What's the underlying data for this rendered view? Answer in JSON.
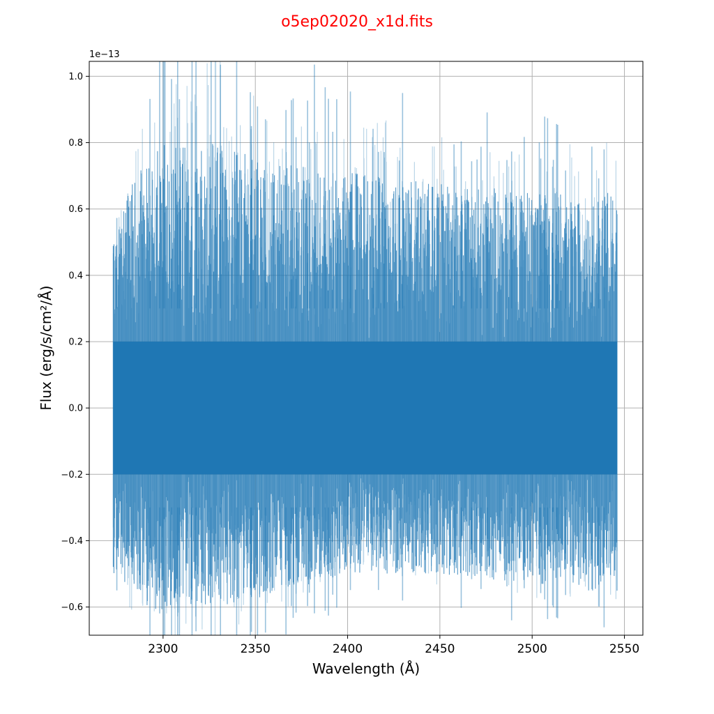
{
  "chart_data": {
    "type": "line",
    "title": "o5ep02020_x1d.fits",
    "title_color": "#ff0000",
    "xlabel": "Wavelength (Å)",
    "ylabel": "Flux (erg/s/cm²/Å)",
    "y_offset_text": "1e−13",
    "xlim": [
      2260,
      2560
    ],
    "ylim": [
      -0.685,
      1.045
    ],
    "x_ticks": [
      2300,
      2350,
      2400,
      2450,
      2500,
      2550
    ],
    "x_tick_labels": [
      "2300",
      "2350",
      "2400",
      "2450",
      "2500",
      "2550"
    ],
    "y_ticks": [
      -0.6,
      -0.4,
      -0.2,
      0.0,
      0.2,
      0.4,
      0.6,
      0.8,
      1.0
    ],
    "y_tick_labels": [
      "−0.6",
      "−0.4",
      "−0.2",
      "0.0",
      "0.2",
      "0.4",
      "0.6",
      "0.8",
      "1.0"
    ],
    "grid": true,
    "series_color": "#1f77b4",
    "series": [
      {
        "x_range": [
          2273,
          2546
        ],
        "core_band": [
          -0.2,
          0.2
        ],
        "spike_max": 1.045,
        "spike_min": -0.685,
        "peak_envelope": [
          {
            "x": 2273,
            "y": 0.55
          },
          {
            "x": 2285,
            "y": 0.85
          },
          {
            "x": 2300,
            "y": 1.0
          },
          {
            "x": 2325,
            "y": 1.0
          },
          {
            "x": 2360,
            "y": 0.9
          },
          {
            "x": 2400,
            "y": 0.85
          },
          {
            "x": 2450,
            "y": 0.8
          },
          {
            "x": 2500,
            "y": 0.75
          },
          {
            "x": 2546,
            "y": 0.75
          }
        ],
        "trough_envelope": [
          {
            "x": 2273,
            "y": -0.5
          },
          {
            "x": 2290,
            "y": -0.68
          },
          {
            "x": 2330,
            "y": -0.68
          },
          {
            "x": 2360,
            "y": -0.6
          },
          {
            "x": 2400,
            "y": -0.5
          },
          {
            "x": 2450,
            "y": -0.5
          },
          {
            "x": 2500,
            "y": -0.55
          },
          {
            "x": 2546,
            "y": -0.6
          }
        ]
      }
    ]
  }
}
